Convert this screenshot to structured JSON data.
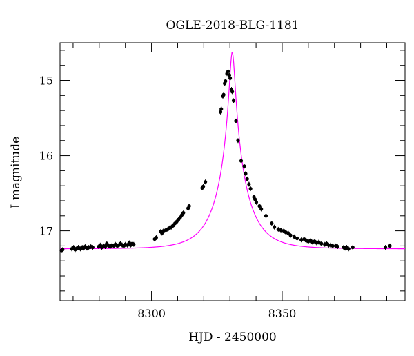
{
  "chart_data": {
    "type": "scatter",
    "title": "OGLE-2018-BLG-1181",
    "xlabel": "HJD - 2450000",
    "ylabel": "I magnitude",
    "xlim": [
      8265,
      8397
    ],
    "ylim": [
      17.93,
      14.5
    ],
    "y_inverted": true,
    "x_ticks_labeled": [
      8300,
      8350
    ],
    "y_ticks_labeled": [
      15,
      16,
      17
    ],
    "grid": false,
    "model": {
      "t0": 8330.9,
      "u0": 0.09,
      "tE": 10.8,
      "F_base_mag": 17.24,
      "color": "#ff00ff"
    },
    "colors": {
      "points": "#000000",
      "model": "#ff00ff"
    },
    "series": [
      {
        "values": [
          [
            8265.5,
            17.26
          ],
          [
            8266.0,
            17.25
          ],
          [
            8269.5,
            17.24
          ],
          [
            8270.2,
            17.22
          ],
          [
            8270.8,
            17.25
          ],
          [
            8271.5,
            17.23
          ],
          [
            8272.0,
            17.22
          ],
          [
            8272.8,
            17.24
          ],
          [
            8273.5,
            17.22
          ],
          [
            8274.0,
            17.23
          ],
          [
            8274.6,
            17.21
          ],
          [
            8275.3,
            17.23
          ],
          [
            8276.0,
            17.22
          ],
          [
            8276.8,
            17.21
          ],
          [
            8277.5,
            17.22
          ],
          [
            8279.8,
            17.21
          ],
          [
            8280.4,
            17.19
          ],
          [
            8281.0,
            17.22
          ],
          [
            8281.7,
            17.2
          ],
          [
            8282.3,
            17.21
          ],
          [
            8282.9,
            17.17
          ],
          [
            8283.6,
            17.2
          ],
          [
            8284.2,
            17.21
          ],
          [
            8284.9,
            17.19
          ],
          [
            8285.6,
            17.2
          ],
          [
            8286.2,
            17.18
          ],
          [
            8286.9,
            17.2
          ],
          [
            8287.5,
            17.19
          ],
          [
            8288.1,
            17.17
          ],
          [
            8288.8,
            17.19
          ],
          [
            8289.4,
            17.2
          ],
          [
            8290.0,
            17.18
          ],
          [
            8290.8,
            17.19
          ],
          [
            8291.5,
            17.16
          ],
          [
            8292.0,
            17.19
          ],
          [
            8292.6,
            17.17
          ],
          [
            8293.2,
            17.18
          ],
          [
            8301.2,
            17.11
          ],
          [
            8301.8,
            17.09
          ],
          [
            8303.5,
            17.01
          ],
          [
            8304.0,
            17.03
          ],
          [
            8304.6,
            17.0
          ],
          [
            8305.5,
            16.99
          ],
          [
            8306.2,
            16.98
          ],
          [
            8307.0,
            16.96
          ],
          [
            8307.6,
            16.95
          ],
          [
            8308.3,
            16.93
          ],
          [
            8309.0,
            16.9
          ],
          [
            8309.6,
            16.88
          ],
          [
            8310.3,
            16.85
          ],
          [
            8311.0,
            16.82
          ],
          [
            8311.6,
            16.79
          ],
          [
            8312.2,
            16.76
          ],
          [
            8314.0,
            16.7
          ],
          [
            8314.4,
            16.67
          ],
          [
            8319.4,
            16.43
          ],
          [
            8319.8,
            16.41
          ],
          [
            8320.6,
            16.35
          ],
          [
            8326.4,
            15.42
          ],
          [
            8326.7,
            15.38
          ],
          [
            8327.3,
            15.21
          ],
          [
            8327.6,
            15.19
          ],
          [
            8328.0,
            15.04
          ],
          [
            8328.3,
            15.01
          ],
          [
            8328.9,
            14.91
          ],
          [
            8329.3,
            14.88
          ],
          [
            8329.8,
            14.93
          ],
          [
            8330.1,
            14.97
          ],
          [
            8330.6,
            15.12
          ],
          [
            8330.9,
            15.15
          ],
          [
            8331.4,
            15.27
          ],
          [
            8332.3,
            15.54
          ],
          [
            8333.1,
            15.8
          ],
          [
            8334.3,
            16.07
          ],
          [
            8335.5,
            16.14
          ],
          [
            8336.0,
            16.24
          ],
          [
            8336.6,
            16.31
          ],
          [
            8337.3,
            16.38
          ],
          [
            8337.9,
            16.44
          ],
          [
            8339.2,
            16.55
          ],
          [
            8339.6,
            16.58
          ],
          [
            8340.1,
            16.62
          ],
          [
            8341.3,
            16.67
          ],
          [
            8342.0,
            16.71
          ],
          [
            8343.8,
            16.8
          ],
          [
            8346.0,
            16.9
          ],
          [
            8347.0,
            16.95
          ],
          [
            8348.5,
            16.98
          ],
          [
            8349.5,
            16.99
          ],
          [
            8350.6,
            17.0
          ],
          [
            8351.4,
            17.02
          ],
          [
            8352.3,
            17.03
          ],
          [
            8353.2,
            17.06
          ],
          [
            8354.6,
            17.08
          ],
          [
            8355.7,
            17.1
          ],
          [
            8357.3,
            17.12
          ],
          [
            8358.4,
            17.11
          ],
          [
            8359.2,
            17.13
          ],
          [
            8360.0,
            17.14
          ],
          [
            8360.8,
            17.13
          ],
          [
            8361.6,
            17.15
          ],
          [
            8362.4,
            17.14
          ],
          [
            8363.2,
            17.16
          ],
          [
            8364.0,
            17.15
          ],
          [
            8365.0,
            17.17
          ],
          [
            8366.3,
            17.18
          ],
          [
            8367.0,
            17.17
          ],
          [
            8367.8,
            17.19
          ],
          [
            8368.5,
            17.19
          ],
          [
            8369.3,
            17.2
          ],
          [
            8370.5,
            17.2
          ],
          [
            8371.2,
            17.21
          ],
          [
            8373.5,
            17.22
          ],
          [
            8374.1,
            17.23
          ],
          [
            8374.7,
            17.22
          ],
          [
            8375.4,
            17.24
          ],
          [
            8377.0,
            17.22
          ],
          [
            8389.5,
            17.22
          ],
          [
            8391.2,
            17.2
          ]
        ]
      }
    ]
  }
}
